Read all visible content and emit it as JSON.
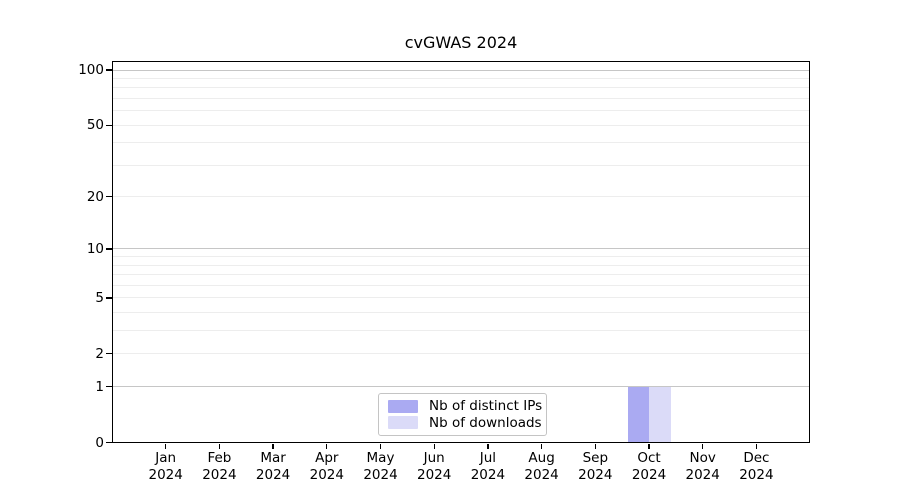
{
  "title": "cvGWAS 2024",
  "legend": {
    "items": [
      {
        "label": "Nb of distinct IPs",
        "color": "#aaaaf2"
      },
      {
        "label": "Nb of downloads",
        "color": "#dbdbf8"
      }
    ]
  },
  "colors": {
    "bar_distinct_ips": "#aaaaf2",
    "bar_downloads": "#dbdbf8",
    "major_grid": "#c6c6c6",
    "minor_grid": "#ededed",
    "axis": "#000000",
    "legend_border": "#c4c4c4",
    "background": "#ffffff"
  },
  "chart_data": {
    "type": "bar",
    "title": "cvGWAS 2024",
    "categories": [
      "Jan 2024",
      "Feb 2024",
      "Mar 2024",
      "Apr 2024",
      "May 2024",
      "Jun 2024",
      "Jul 2024",
      "Aug 2024",
      "Sep 2024",
      "Oct 2024",
      "Nov 2024",
      "Dec 2024"
    ],
    "x_months": [
      "Jan",
      "Feb",
      "Mar",
      "Apr",
      "May",
      "Jun",
      "Jul",
      "Aug",
      "Sep",
      "Oct",
      "Nov",
      "Dec"
    ],
    "x_year": "2024",
    "series": [
      {
        "name": "Nb of distinct IPs",
        "color": "#aaaaf2",
        "values": [
          0,
          0,
          0,
          0,
          0,
          0,
          0,
          0,
          0,
          1,
          0,
          0
        ]
      },
      {
        "name": "Nb of downloads",
        "color": "#dbdbf8",
        "values": [
          0,
          0,
          0,
          0,
          0,
          0,
          0,
          0,
          0,
          1,
          0,
          0
        ]
      }
    ],
    "yscale": "log1p",
    "ylim": [
      0,
      115
    ],
    "y_ticks": [
      0,
      1,
      2,
      5,
      10,
      20,
      50,
      100
    ],
    "y_major_gridlines": [
      1,
      10,
      100
    ],
    "y_minor_gridlines": [
      2,
      3,
      4,
      5,
      6,
      7,
      8,
      9,
      20,
      30,
      40,
      50,
      60,
      70,
      80,
      90
    ],
    "grid": true,
    "legend_position": "lower center",
    "xlabel": "",
    "ylabel": ""
  }
}
